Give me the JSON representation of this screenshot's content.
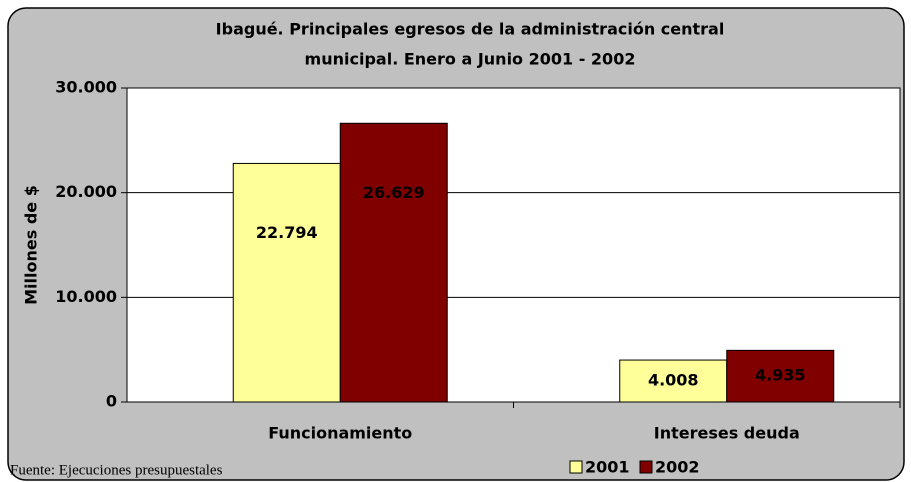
{
  "chart_data": {
    "type": "bar",
    "title": [
      "Ibagué. Principales egresos de la administración central",
      "municipal. Enero a Junio 2001 - 2002"
    ],
    "y_label": "Millones de $",
    "categories": [
      "Funcionamiento",
      "Intereses deuda"
    ],
    "series": [
      {
        "name": "2001",
        "color": "#ffff99",
        "values": [
          22794,
          4008
        ],
        "value_labels": [
          "22.794",
          "4.008"
        ]
      },
      {
        "name": "2002",
        "color": "#800000",
        "values": [
          26629,
          4935
        ],
        "value_labels": [
          "26.629",
          "4.935"
        ]
      }
    ],
    "ylim": [
      0,
      30000
    ],
    "yticks": [
      0,
      {
        "value": 10000,
        "label": "10.000"
      },
      {
        "value": 20000,
        "label": "20.000"
      },
      {
        "value": 30000,
        "label": "30.000"
      }
    ],
    "grid": true,
    "legend": "bottom-right",
    "source": "Fuente: Ejecuciones presupuestales"
  }
}
